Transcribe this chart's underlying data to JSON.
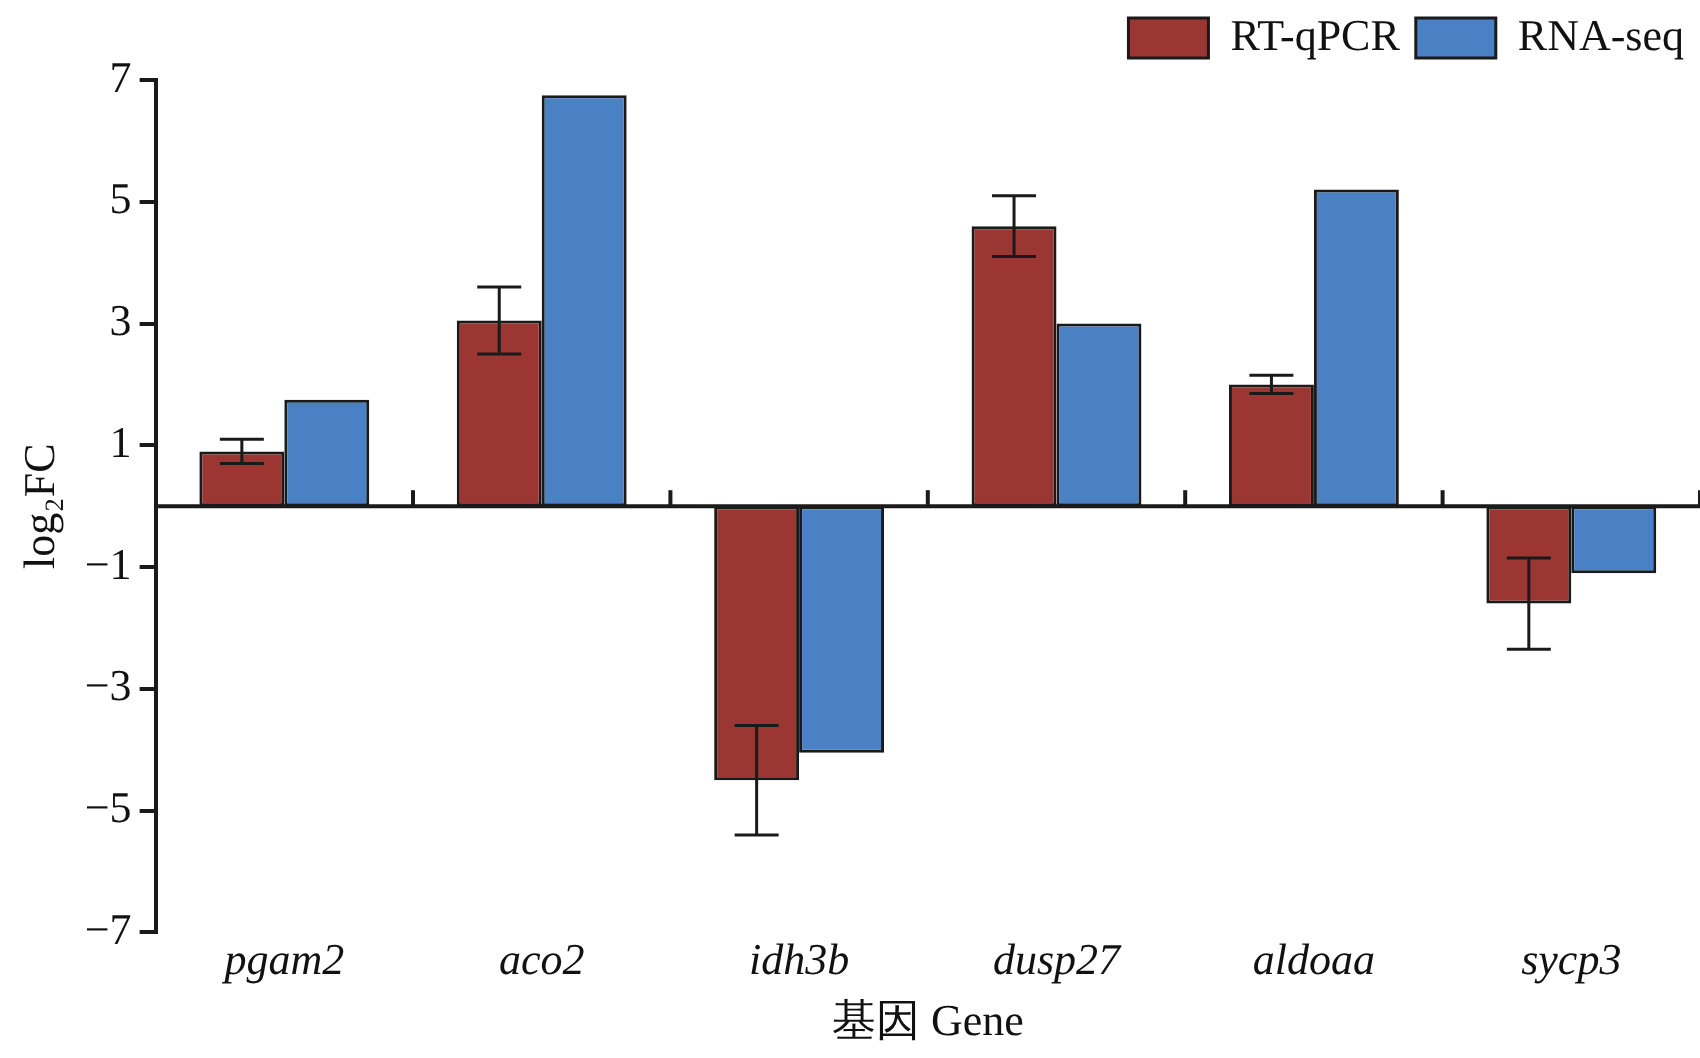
{
  "chart_data": {
    "type": "bar",
    "xlabel": "基因 Gene",
    "ylabel": "log₂FC",
    "categories": [
      "pgam2",
      "aco2",
      "idh3b",
      "dusp27",
      "aldoaa",
      "sycp3"
    ],
    "series": [
      {
        "name": "RT-qPCR",
        "color": "#9b3632",
        "values": [
          0.9,
          3.05,
          -4.5,
          4.6,
          2.0,
          -1.6
        ],
        "errors": [
          0.2,
          0.55,
          0.9,
          0.5,
          0.15,
          0.75
        ]
      },
      {
        "name": "RNA-seq",
        "color": "#4a80c4",
        "values": [
          1.75,
          6.75,
          -4.05,
          3.0,
          5.2,
          -1.1
        ]
      }
    ],
    "ylim": [
      -7,
      7
    ],
    "yticks": [
      {
        "value": -7,
        "label": "−7"
      },
      {
        "value": -5,
        "label": "−5"
      },
      {
        "value": -3,
        "label": "−3"
      },
      {
        "value": -1,
        "label": "−1"
      },
      1,
      3,
      5,
      7
    ],
    "grid": false,
    "legend": "top right"
  }
}
